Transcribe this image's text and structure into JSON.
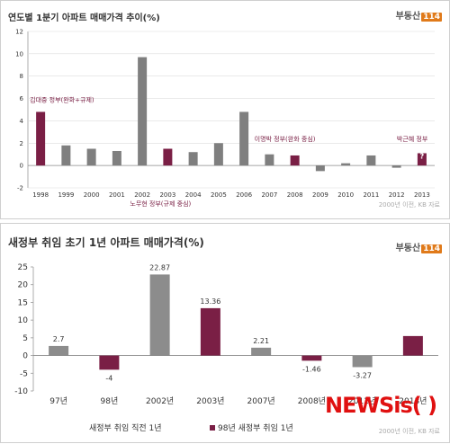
{
  "top_panel": {
    "title": "연도별 1분기 아파트 매매가격 추이(%)",
    "logo_text": "부동산",
    "logo_mark": "114",
    "source": "2000년 이전, KB 자료"
  },
  "bottom_panel": {
    "title": "새정부 취임 초기 1년 아파트 매매가격(%)",
    "logo_text": "부동산",
    "logo_mark": "114",
    "source": "2000년 이전, KB 자료",
    "legend": {
      "item1": "새정부 취임 직전 1년",
      "item2": "98년  새정부 취임 1년"
    },
    "watermark": "NEWSis( )"
  },
  "chart_data": [
    {
      "type": "bar",
      "title": "연도별 1분기 아파트 매매가격 추이(%)",
      "categories": [
        "1998",
        "1999",
        "2000",
        "2001",
        "2002",
        "2003",
        "2004",
        "2005",
        "2006",
        "2007",
        "2008",
        "2009",
        "2010",
        "2011",
        "2012",
        "2013"
      ],
      "values": [
        4.8,
        1.8,
        1.5,
        1.3,
        9.7,
        1.5,
        1.2,
        2.0,
        4.8,
        1.0,
        0.9,
        -0.5,
        0.2,
        0.9,
        -0.2,
        1.1
      ],
      "highlight": [
        true,
        false,
        false,
        false,
        false,
        true,
        false,
        false,
        false,
        false,
        true,
        false,
        false,
        false,
        false,
        true
      ],
      "ylim": [
        -2,
        12
      ],
      "yticks": [
        -2,
        0,
        2,
        4,
        6,
        8,
        10,
        12
      ],
      "gridlines": true,
      "annotations": [
        {
          "text": "김대중 정부(완화+규제)",
          "category": "1998"
        },
        {
          "text": "노무현 정부(규제 중심)",
          "category": "2003"
        },
        {
          "text": "이명박 정부(완화 중심)",
          "category": "2008"
        },
        {
          "text": "박근혜 정부",
          "category": "2013"
        },
        {
          "text": "?",
          "category": "2013"
        }
      ],
      "colors": {
        "highlight": "#7a1f45",
        "normal": "#7f7f7f"
      }
    },
    {
      "type": "bar",
      "title": "새정부 취임 초기 1년 아파트 매매가격(%)",
      "categories": [
        "97년",
        "98년",
        "2002년",
        "2003년",
        "2007년",
        "2008년",
        "2012년",
        "2013년"
      ],
      "values": [
        2.7,
        -4,
        22.87,
        13.36,
        2.21,
        -1.46,
        -3.27,
        5.5
      ],
      "data_labels": [
        "2.7",
        "-4",
        "22.87",
        "13.36",
        "2.21",
        "-1.46",
        "-3.27",
        ""
      ],
      "highlight": [
        false,
        true,
        false,
        true,
        false,
        true,
        false,
        true
      ],
      "ylim": [
        -10,
        25
      ],
      "yticks": [
        -10,
        -5,
        0,
        5,
        10,
        15,
        20,
        25
      ],
      "gridlines": false,
      "colors": {
        "highlight": "#7a1f45",
        "normal": "#8c8c8c"
      }
    }
  ]
}
